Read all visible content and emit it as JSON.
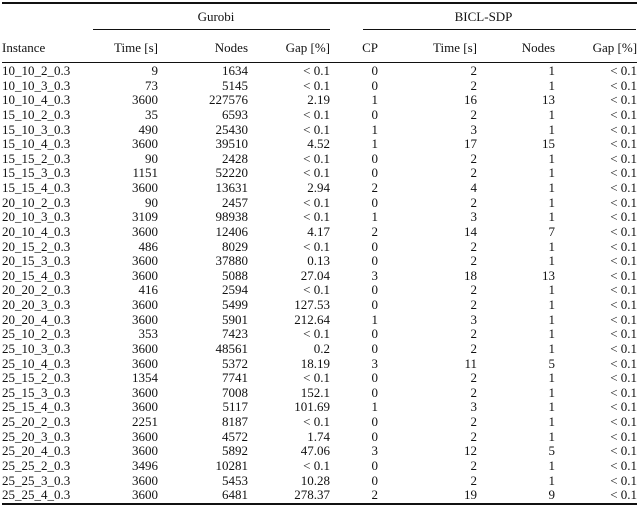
{
  "table": {
    "groups": [
      {
        "label": "Gurobi",
        "span": 3
      },
      {
        "label": "BICL-SDP",
        "span": 4
      }
    ],
    "columns": [
      "Instance",
      "Time [s]",
      "Nodes",
      "Gap [%]",
      "CP",
      "Time [s]",
      "Nodes",
      "Gap [%]"
    ],
    "rows": [
      [
        "10_10_2_0.3",
        "9",
        "1634",
        "< 0.1",
        "0",
        "2",
        "1",
        "< 0.1"
      ],
      [
        "10_10_3_0.3",
        "73",
        "5145",
        "< 0.1",
        "0",
        "2",
        "1",
        "< 0.1"
      ],
      [
        "10_10_4_0.3",
        "3600",
        "227576",
        "2.19",
        "1",
        "16",
        "13",
        "< 0.1"
      ],
      [
        "15_10_2_0.3",
        "35",
        "6593",
        "< 0.1",
        "0",
        "2",
        "1",
        "< 0.1"
      ],
      [
        "15_10_3_0.3",
        "490",
        "25430",
        "< 0.1",
        "1",
        "3",
        "1",
        "< 0.1"
      ],
      [
        "15_10_4_0.3",
        "3600",
        "39510",
        "4.52",
        "1",
        "17",
        "15",
        "< 0.1"
      ],
      [
        "15_15_2_0.3",
        "90",
        "2428",
        "< 0.1",
        "0",
        "2",
        "1",
        "< 0.1"
      ],
      [
        "15_15_3_0.3",
        "1151",
        "52220",
        "< 0.1",
        "0",
        "2",
        "1",
        "< 0.1"
      ],
      [
        "15_15_4_0.3",
        "3600",
        "13631",
        "2.94",
        "2",
        "4",
        "1",
        "< 0.1"
      ],
      [
        "20_10_2_0.3",
        "90",
        "2457",
        "< 0.1",
        "0",
        "2",
        "1",
        "< 0.1"
      ],
      [
        "20_10_3_0.3",
        "3109",
        "98938",
        "< 0.1",
        "1",
        "3",
        "1",
        "< 0.1"
      ],
      [
        "20_10_4_0.3",
        "3600",
        "12406",
        "4.17",
        "2",
        "14",
        "7",
        "< 0.1"
      ],
      [
        "20_15_2_0.3",
        "486",
        "8029",
        "< 0.1",
        "0",
        "2",
        "1",
        "< 0.1"
      ],
      [
        "20_15_3_0.3",
        "3600",
        "37880",
        "0.13",
        "0",
        "2",
        "1",
        "< 0.1"
      ],
      [
        "20_15_4_0.3",
        "3600",
        "5088",
        "27.04",
        "3",
        "18",
        "13",
        "< 0.1"
      ],
      [
        "20_20_2_0.3",
        "416",
        "2594",
        "< 0.1",
        "0",
        "2",
        "1",
        "< 0.1"
      ],
      [
        "20_20_3_0.3",
        "3600",
        "5499",
        "127.53",
        "0",
        "2",
        "1",
        "< 0.1"
      ],
      [
        "20_20_4_0.3",
        "3600",
        "5901",
        "212.64",
        "1",
        "3",
        "1",
        "< 0.1"
      ],
      [
        "25_10_2_0.3",
        "353",
        "7423",
        "< 0.1",
        "0",
        "2",
        "1",
        "< 0.1"
      ],
      [
        "25_10_3_0.3",
        "3600",
        "48561",
        "0.2",
        "0",
        "2",
        "1",
        "< 0.1"
      ],
      [
        "25_10_4_0.3",
        "3600",
        "5372",
        "18.19",
        "3",
        "11",
        "5",
        "< 0.1"
      ],
      [
        "25_15_2_0.3",
        "1354",
        "7741",
        "< 0.1",
        "0",
        "2",
        "1",
        "< 0.1"
      ],
      [
        "25_15_3_0.3",
        "3600",
        "7008",
        "152.1",
        "0",
        "2",
        "1",
        "< 0.1"
      ],
      [
        "25_15_4_0.3",
        "3600",
        "5117",
        "101.69",
        "1",
        "3",
        "1",
        "< 0.1"
      ],
      [
        "25_20_2_0.3",
        "2251",
        "8187",
        "< 0.1",
        "0",
        "2",
        "1",
        "< 0.1"
      ],
      [
        "25_20_3_0.3",
        "3600",
        "4572",
        "1.74",
        "0",
        "2",
        "1",
        "< 0.1"
      ],
      [
        "25_20_4_0.3",
        "3600",
        "5892",
        "47.06",
        "3",
        "12",
        "5",
        "< 0.1"
      ],
      [
        "25_25_2_0.3",
        "3496",
        "10281",
        "< 0.1",
        "0",
        "2",
        "1",
        "< 0.1"
      ],
      [
        "25_25_3_0.3",
        "3600",
        "5453",
        "10.28",
        "0",
        "2",
        "1",
        "< 0.1"
      ],
      [
        "25_25_4_0.3",
        "3600",
        "6481",
        "278.37",
        "2",
        "19",
        "9",
        "< 0.1"
      ]
    ]
  }
}
